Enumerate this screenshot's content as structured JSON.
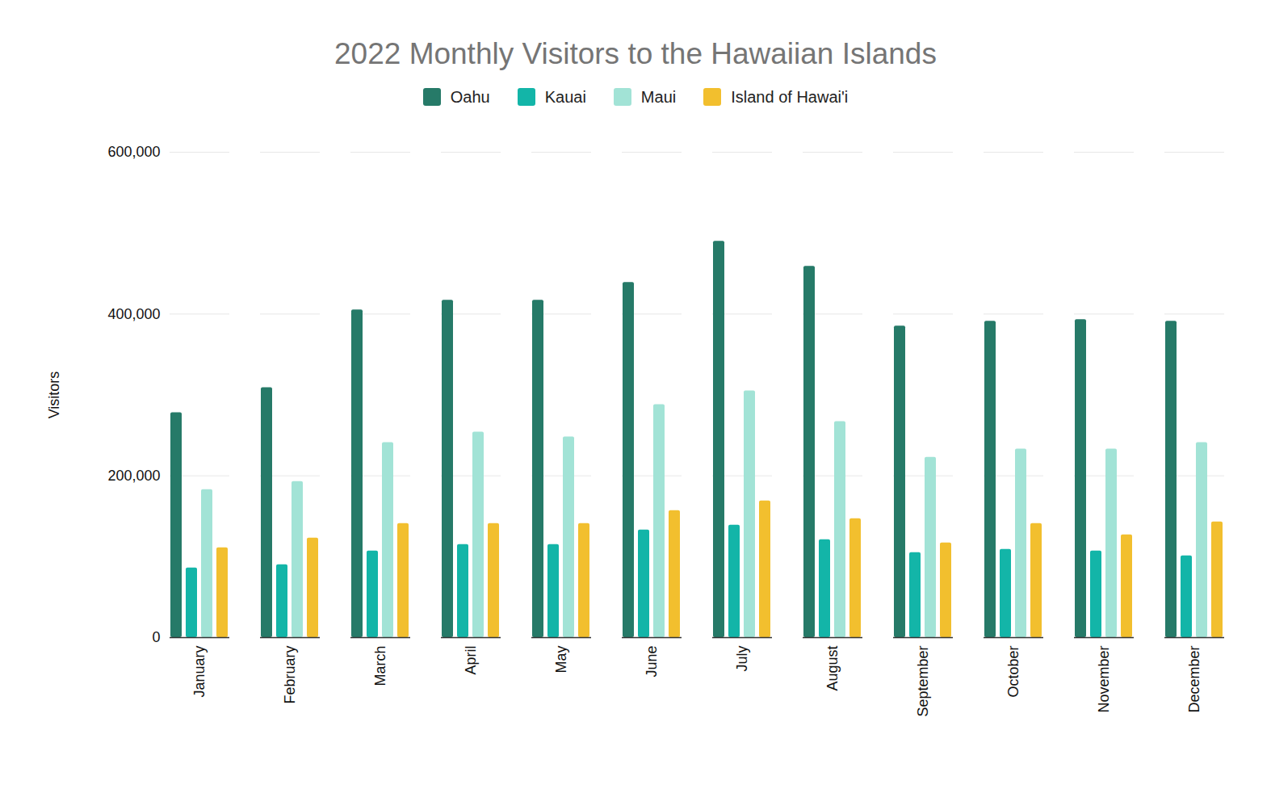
{
  "chart_data": {
    "type": "bar",
    "title": "2022 Monthly Visitors to the Hawaiian Islands",
    "y_label": "Visitors",
    "categories": [
      "January",
      "February",
      "March",
      "April",
      "May",
      "June",
      "July",
      "August",
      "September",
      "October",
      "November",
      "December"
    ],
    "series": [
      {
        "name": "Oahu",
        "color": "#267a68",
        "values": [
          278000,
          309000,
          405000,
          417000,
          417000,
          439000,
          490000,
          459000,
          385000,
          391000,
          393000,
          391000
        ]
      },
      {
        "name": "Kauai",
        "color": "#13b5a8",
        "values": [
          86000,
          90000,
          107000,
          115000,
          115000,
          133000,
          139000,
          121000,
          105000,
          109000,
          107000,
          101000
        ]
      },
      {
        "name": "Maui",
        "color": "#a2e3d6",
        "values": [
          183000,
          193000,
          241000,
          254000,
          248000,
          288000,
          305000,
          267000,
          223000,
          233000,
          233000,
          241000
        ]
      },
      {
        "name": "Island of Hawai'i",
        "color": "#f2bf2e",
        "values": [
          111000,
          123000,
          141000,
          141000,
          141000,
          157000,
          169000,
          147000,
          117000,
          141000,
          127000,
          143000
        ]
      }
    ],
    "ylim": [
      0,
      600000
    ],
    "yticks": [
      0,
      {
        "value": 200000,
        "label": "200,000"
      },
      {
        "value": 400000,
        "label": "400,000"
      },
      {
        "value": 600000,
        "label": "600,000"
      }
    ],
    "grid": true,
    "legend": "top"
  }
}
